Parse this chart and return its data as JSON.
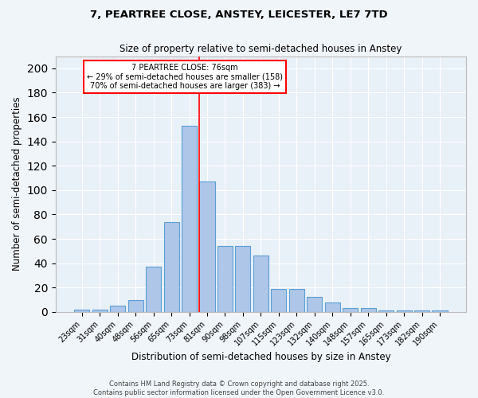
{
  "title1": "7, PEARTREE CLOSE, ANSTEY, LEICESTER, LE7 7TD",
  "title2": "Size of property relative to semi-detached houses in Anstey",
  "xlabel": "Distribution of semi-detached houses by size in Anstey",
  "ylabel": "Number of semi-detached properties",
  "categories": [
    "23sqm",
    "31sqm",
    "40sqm",
    "48sqm",
    "56sqm",
    "65sqm",
    "73sqm",
    "81sqm",
    "90sqm",
    "98sqm",
    "107sqm",
    "115sqm",
    "123sqm",
    "132sqm",
    "140sqm",
    "148sqm",
    "157sqm",
    "165sqm",
    "173sqm",
    "182sqm",
    "190sqm"
  ],
  "values": [
    2,
    2,
    5,
    10,
    37,
    74,
    153,
    107,
    54,
    54,
    46,
    19,
    19,
    12,
    8,
    3,
    3,
    1,
    1,
    1,
    1
  ],
  "bar_color": "#aec6e8",
  "bar_edge_color": "#5a9fd4",
  "vline_x_index": 7,
  "vline_color": "red",
  "ylim": [
    0,
    210
  ],
  "yticks": [
    0,
    20,
    40,
    60,
    80,
    100,
    120,
    140,
    160,
    180,
    200
  ],
  "annotation_title": "7 PEARTREE CLOSE: 76sqm",
  "annotation_line1": "← 29% of semi-detached houses are smaller (158)",
  "annotation_line2": "70% of semi-detached houses are larger (383) →",
  "annotation_box_color": "#ffffff",
  "annotation_edge_color": "red",
  "footer1": "Contains HM Land Registry data © Crown copyright and database right 2025.",
  "footer2": "Contains public sector information licensed under the Open Government Licence v3.0.",
  "bg_color": "#e8f0f8",
  "fig_bg_color": "#f0f5fa",
  "grid_color": "#ffffff"
}
